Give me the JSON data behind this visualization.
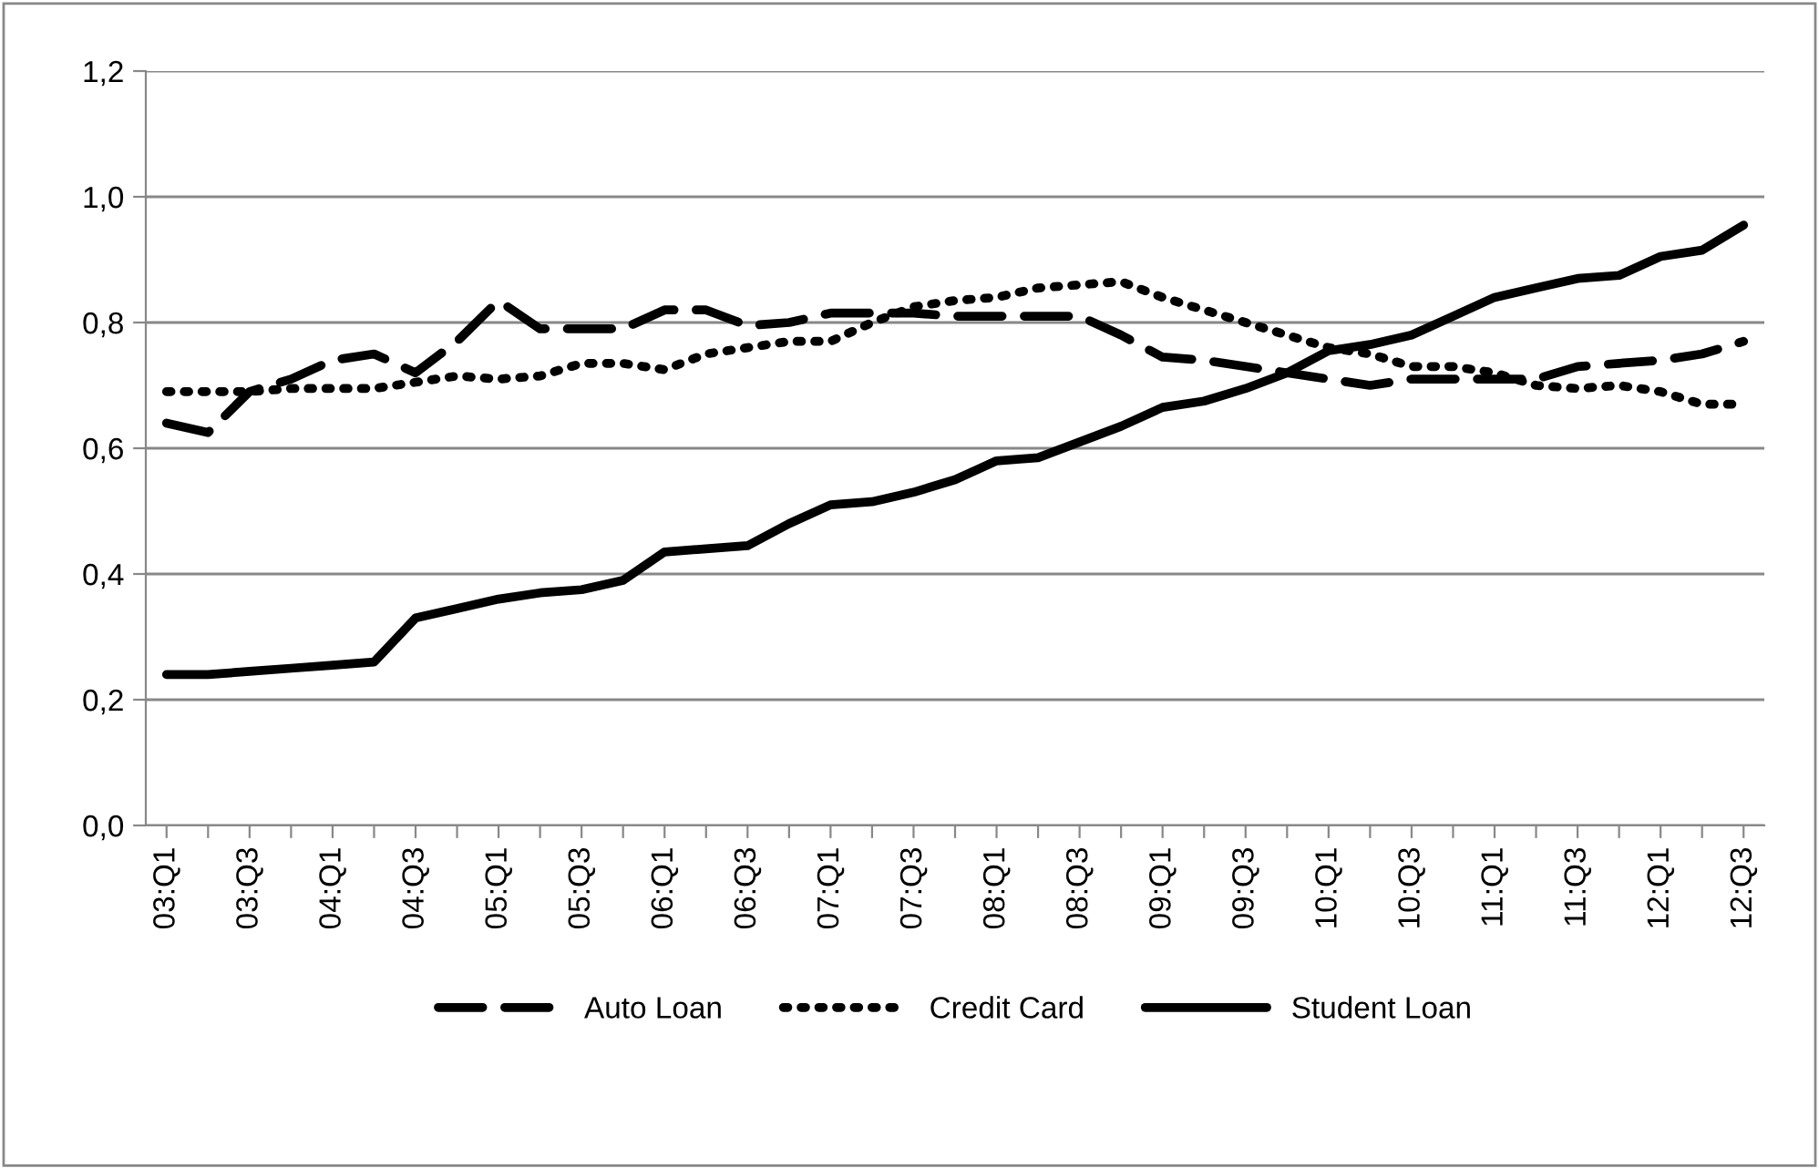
{
  "chart_data": {
    "type": "line",
    "categories": [
      "03:Q1",
      null,
      "03:Q3",
      null,
      "04:Q1",
      null,
      "04:Q3",
      null,
      "05:Q1",
      null,
      "05:Q3",
      null,
      "06:Q1",
      null,
      "06:Q3",
      null,
      "07:Q1",
      null,
      "07:Q3",
      null,
      "08:Q1",
      null,
      "08:Q3",
      null,
      "09:Q1",
      null,
      "09:Q3",
      null,
      "10:Q1",
      null,
      "10:Q3",
      null,
      "11:Q1",
      null,
      "11:Q3",
      null,
      "12:Q1",
      null,
      "12:Q3"
    ],
    "series": [
      {
        "name": "Auto Loan",
        "color": "#000000",
        "line_style": "dashed",
        "values": [
          0.64,
          0.625,
          0.69,
          0.71,
          0.74,
          0.75,
          0.72,
          0.77,
          0.835,
          0.79,
          0.79,
          0.79,
          0.82,
          0.82,
          0.795,
          0.8,
          0.815,
          0.815,
          0.815,
          0.81,
          0.81,
          0.81,
          0.81,
          0.78,
          0.745,
          0.74,
          0.73,
          0.72,
          0.71,
          0.7,
          0.71,
          0.71,
          0.71,
          0.71,
          0.73,
          0.735,
          0.74,
          0.75,
          0.77
        ]
      },
      {
        "name": "Credit Card",
        "color": "#000000",
        "line_style": "dotted",
        "values": [
          0.69,
          0.69,
          0.69,
          0.695,
          0.695,
          0.695,
          0.705,
          0.715,
          0.71,
          0.715,
          0.735,
          0.735,
          0.725,
          0.75,
          0.76,
          0.77,
          0.77,
          0.8,
          0.825,
          0.835,
          0.84,
          0.855,
          0.86,
          0.865,
          0.84,
          0.82,
          0.8,
          0.78,
          0.76,
          0.75,
          0.73,
          0.73,
          0.72,
          0.7,
          0.695,
          0.7,
          0.69,
          0.67,
          0.67
        ]
      },
      {
        "name": "Student Loan",
        "color": "#000000",
        "line_style": "solid",
        "values": [
          0.24,
          0.24,
          0.245,
          0.25,
          0.255,
          0.26,
          0.33,
          0.345,
          0.36,
          0.37,
          0.375,
          0.39,
          0.435,
          0.44,
          0.445,
          0.48,
          0.51,
          0.515,
          0.53,
          0.55,
          0.58,
          0.585,
          0.61,
          0.635,
          0.665,
          0.675,
          0.695,
          0.72,
          0.755,
          0.765,
          0.78,
          0.81,
          0.84,
          0.855,
          0.87,
          0.875,
          0.905,
          0.915,
          0.955
        ]
      }
    ],
    "ylim": [
      0,
      1.2
    ],
    "yticks": [
      {
        "value": 0,
        "label": "0,0"
      },
      {
        "value": 0.2,
        "label": "0,2"
      },
      {
        "value": 0.4,
        "label": "0,4"
      },
      {
        "value": 0.6,
        "label": "0,6"
      },
      {
        "value": 0.8,
        "label": "0,8"
      },
      {
        "value": 1.0,
        "label": "1,0"
      },
      {
        "value": 1.2,
        "label": "1,2"
      }
    ],
    "grid": "y",
    "legend": "bottom",
    "marker": "none"
  }
}
